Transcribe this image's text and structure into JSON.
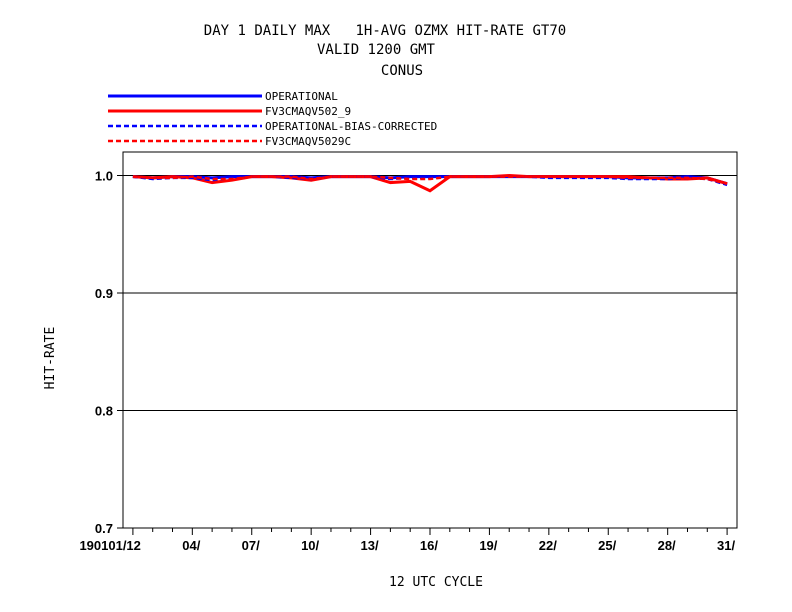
{
  "chart_data": {
    "type": "line",
    "title_lines": [
      "DAY 1 DAILY MAX   1H-AVG OZMX HIT-RATE GT70",
      "VALID 1200 GMT",
      "CONUS"
    ],
    "xlabel": "12 UTC CYCLE",
    "ylabel": "HIT-RATE",
    "ylim": [
      0.7,
      1.02
    ],
    "yticks": [
      "0.7",
      "0.8",
      "0.9",
      "1.0"
    ],
    "ytick_values": [
      0.7,
      0.8,
      0.9,
      1.0
    ],
    "xlim": [
      0.5,
      31.5
    ],
    "xtick_values": [
      1,
      4,
      7,
      10,
      13,
      16,
      19,
      22,
      25,
      28,
      31
    ],
    "xticks": [
      "190101/12",
      "04/",
      "07/",
      "10/",
      "13/",
      "16/",
      "19/",
      "22/",
      "25/",
      "28/",
      "31/"
    ],
    "grid": "horizontal",
    "legend_position": "top-left",
    "x": [
      1,
      2,
      3,
      4,
      5,
      6,
      7,
      8,
      9,
      10,
      11,
      12,
      13,
      14,
      15,
      16,
      17,
      18,
      19,
      20,
      21,
      22,
      23,
      24,
      25,
      26,
      27,
      28,
      29,
      30,
      31
    ],
    "series": [
      {
        "name": "OPERATIONAL",
        "color": "#0000ff",
        "dash": "solid",
        "values": [
          0.999,
          0.998,
          0.999,
          0.999,
          0.998,
          0.999,
          0.999,
          0.999,
          0.999,
          0.998,
          0.999,
          0.999,
          0.999,
          0.998,
          0.999,
          0.999,
          0.999,
          0.999,
          0.999,
          0.999,
          0.999,
          0.999,
          0.999,
          0.999,
          0.999,
          0.998,
          0.998,
          0.998,
          0.999,
          0.998,
          0.993
        ]
      },
      {
        "name": "FV3CMAQV502_9",
        "color": "#ff0000",
        "dash": "solid",
        "values": [
          0.999,
          0.998,
          0.999,
          0.998,
          0.994,
          0.996,
          0.999,
          0.999,
          0.998,
          0.996,
          0.999,
          0.999,
          0.999,
          0.994,
          0.995,
          0.987,
          0.999,
          0.999,
          0.999,
          1.0,
          0.999,
          0.999,
          0.999,
          0.999,
          0.999,
          0.999,
          0.998,
          0.997,
          0.997,
          0.998,
          0.993
        ]
      },
      {
        "name": "OPERATIONAL-BIAS-CORRECTED",
        "color": "#0000ff",
        "dash": "dashed",
        "values": [
          0.999,
          0.997,
          0.998,
          0.998,
          0.996,
          0.998,
          0.999,
          0.999,
          0.998,
          0.997,
          0.999,
          0.999,
          0.999,
          0.997,
          0.998,
          0.998,
          0.999,
          0.999,
          0.999,
          0.999,
          0.999,
          0.998,
          0.998,
          0.998,
          0.998,
          0.997,
          0.997,
          0.997,
          0.998,
          0.997,
          0.992
        ]
      },
      {
        "name": "FV3CMAQV5029C",
        "color": "#ff0000",
        "dash": "dashed",
        "values": [
          0.999,
          0.998,
          0.998,
          0.999,
          0.997,
          0.997,
          0.999,
          0.999,
          0.999,
          0.997,
          0.999,
          0.999,
          0.999,
          0.998,
          0.997,
          0.997,
          0.999,
          0.999,
          0.999,
          0.999,
          0.999,
          0.999,
          0.999,
          0.999,
          0.999,
          0.998,
          0.998,
          0.998,
          0.998,
          0.997,
          0.993
        ]
      }
    ]
  }
}
